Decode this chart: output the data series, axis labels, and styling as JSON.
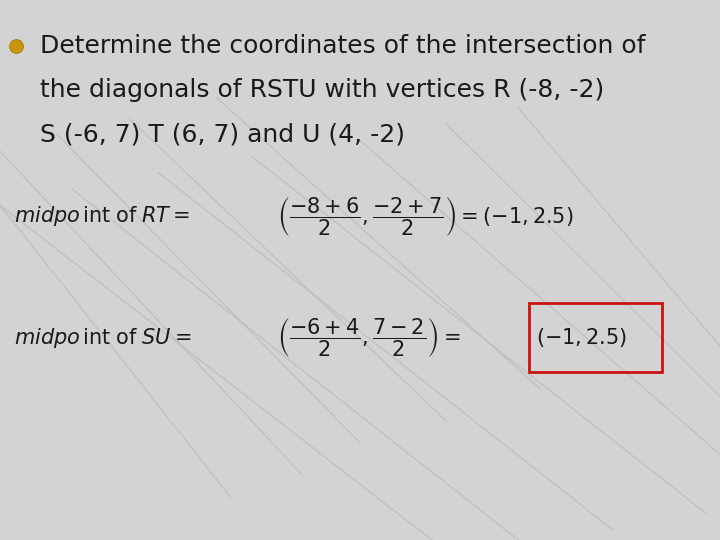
{
  "bg_color": "#d3d3d3",
  "bullet_color": "#c8960c",
  "title_lines": [
    "Determine the coordinates of the intersection of",
    "the diagonals of RSTU with vertices R (-8, -2)",
    "S (-6, 7) T (6, 7) and U (4, -2)"
  ],
  "title_fontsize": 18,
  "formula_fontsize": 15,
  "box_color": "#cc1111",
  "text_color": "#1a1a1a",
  "line_color": "#bebebe",
  "diag_lines": [
    [
      [
        0.0,
        0.6
      ],
      [
        0.62,
        0.0
      ]
    ],
    [
      [
        0.1,
        0.72
      ],
      [
        0.65,
        0.0
      ]
    ],
    [
      [
        0.22,
        0.85
      ],
      [
        0.68,
        0.02
      ]
    ],
    [
      [
        0.35,
        0.98
      ],
      [
        0.71,
        0.05
      ]
    ],
    [
      [
        0.5,
        1.05
      ],
      [
        0.74,
        0.1
      ]
    ],
    [
      [
        0.62,
        1.05
      ],
      [
        0.77,
        0.2
      ]
    ],
    [
      [
        0.72,
        1.05
      ],
      [
        0.8,
        0.28
      ]
    ],
    [
      [
        0.0,
        0.42
      ],
      [
        0.72,
        0.12
      ]
    ],
    [
      [
        0.0,
        0.32
      ],
      [
        0.62,
        0.08
      ]
    ],
    [
      [
        0.08,
        0.5
      ],
      [
        0.75,
        0.18
      ]
    ],
    [
      [
        0.18,
        0.62
      ],
      [
        0.78,
        0.22
      ]
    ],
    [
      [
        0.3,
        0.75
      ],
      [
        0.82,
        0.28
      ]
    ]
  ]
}
